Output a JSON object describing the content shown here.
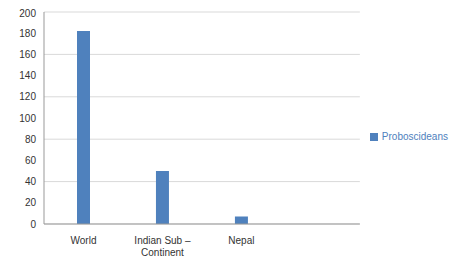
{
  "chart_data": {
    "type": "bar",
    "categories": [
      "World",
      "Indian Sub – Continent",
      "Nepal",
      null
    ],
    "series": [
      {
        "name": "Proboscideans",
        "color": "#4f81bd",
        "values": [
          182,
          50,
          7,
          null
        ]
      }
    ],
    "ylim": [
      0,
      200
    ],
    "yticks": [
      0,
      20,
      40,
      60,
      80,
      100,
      120,
      140,
      160,
      180,
      200
    ],
    "grid": true,
    "legend": "right"
  }
}
